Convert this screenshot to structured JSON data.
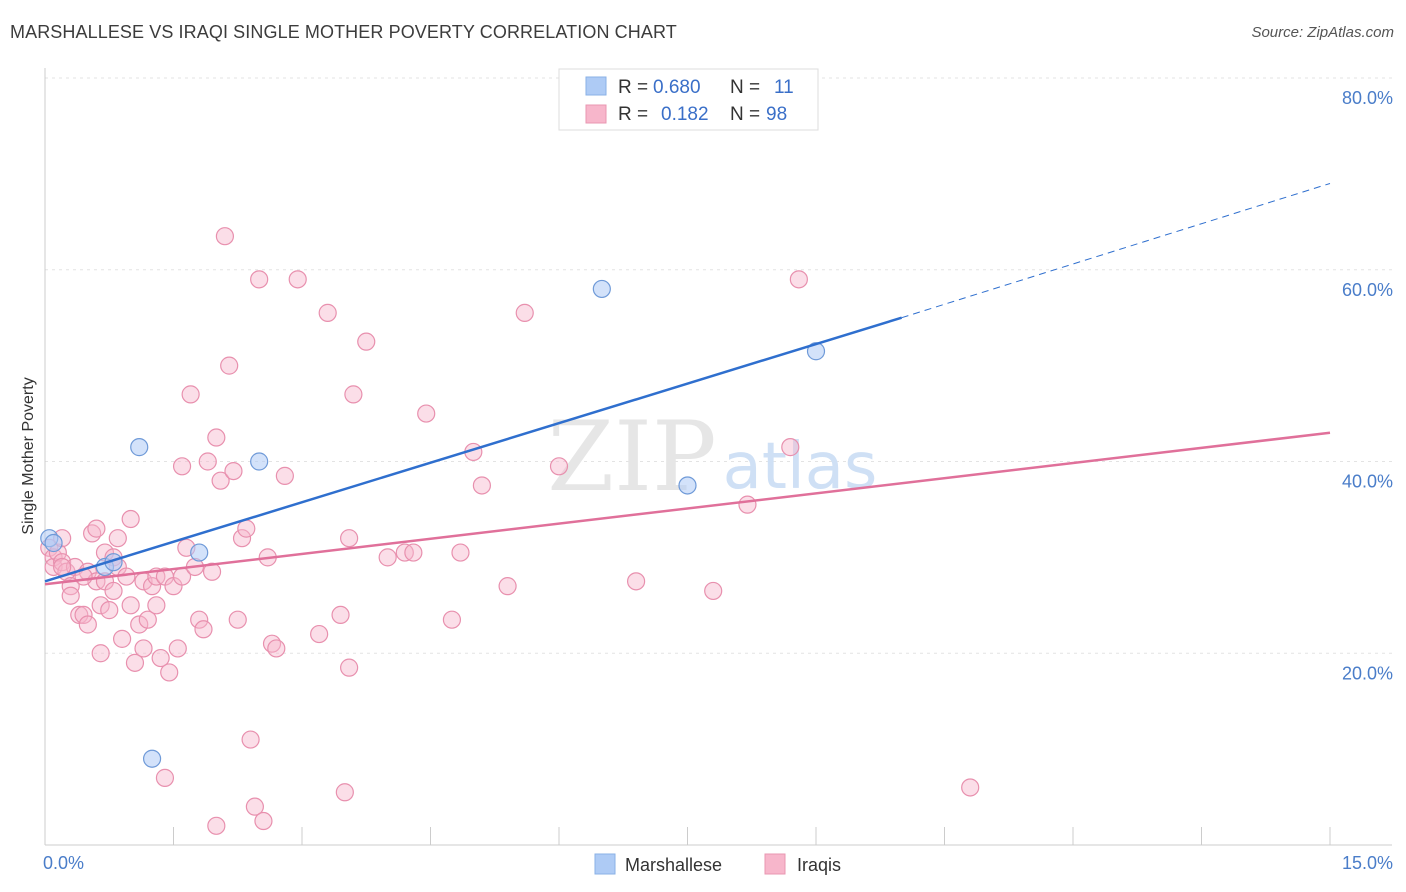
{
  "header": {
    "title": "MARSHALLESE VS IRAQI SINGLE MOTHER POVERTY CORRELATION CHART",
    "source": "Source: ZipAtlas.com"
  },
  "watermark": {
    "zip": "ZIP",
    "atlas": "atlas"
  },
  "legend_top": {
    "rows": [
      {
        "r_label": "R =",
        "r_value": "0.680",
        "n_label": "N =",
        "n_value": "11",
        "color": "#aecbf5"
      },
      {
        "r_label": "R =",
        "r_value": "0.182",
        "n_label": "N =",
        "n_value": "98",
        "color": "#f7b6cb"
      }
    ]
  },
  "legend_bottom": [
    {
      "label": "Marshallese",
      "color": "#aecbf5"
    },
    {
      "label": "Iraqis",
      "color": "#f7b6cb"
    }
  ],
  "colors": {
    "blue_line": "#2f6fce",
    "pink_line": "#e0709a",
    "blue_fill": "#aecbf5",
    "pink_fill": "#f7b6cb",
    "tick_label": "#4a7dc9"
  },
  "chart_data": {
    "type": "scatter",
    "title": "MARSHALLESE VS IRAQI SINGLE MOTHER POVERTY CORRELATION CHART",
    "xlabel": "",
    "ylabel": "Single Mother Poverty",
    "xlim": [
      0.0,
      15.0
    ],
    "ylim": [
      0.0,
      80.0
    ],
    "x_tick_labels": [
      "0.0%",
      "15.0%"
    ],
    "y_ticks": [
      20,
      40,
      60,
      80
    ],
    "y_tick_labels": [
      "20.0%",
      "40.0%",
      "60.0%",
      "80.0%"
    ],
    "grid": true,
    "series": [
      {
        "name": "Marshallese",
        "points": [
          [
            0.05,
            32.0
          ],
          [
            0.7,
            29.0
          ],
          [
            0.8,
            29.5
          ],
          [
            1.1,
            41.5
          ],
          [
            1.25,
            9.0
          ],
          [
            1.8,
            30.5
          ],
          [
            2.5,
            40.0
          ],
          [
            6.5,
            58.0
          ],
          [
            7.5,
            37.5
          ],
          [
            9.0,
            51.5
          ],
          [
            0.1,
            31.5
          ]
        ],
        "trend": {
          "x": [
            0.0,
            10.0
          ],
          "y": [
            27.5,
            55.0
          ],
          "dashed_to": {
            "x": 15.0,
            "y": 69.0
          }
        },
        "R": 0.68,
        "N": 11
      },
      {
        "name": "Iraqis",
        "points": [
          [
            0.05,
            31.0
          ],
          [
            0.1,
            30.0
          ],
          [
            0.1,
            29.0
          ],
          [
            0.15,
            30.5
          ],
          [
            0.2,
            29.5
          ],
          [
            0.2,
            32.0
          ],
          [
            0.25,
            28.5
          ],
          [
            0.3,
            27.0
          ],
          [
            0.3,
            26.0
          ],
          [
            0.35,
            29.0
          ],
          [
            0.4,
            24.0
          ],
          [
            0.45,
            24.0
          ],
          [
            0.5,
            23.0
          ],
          [
            0.5,
            28.5
          ],
          [
            0.55,
            32.5
          ],
          [
            0.6,
            33.0
          ],
          [
            0.6,
            27.5
          ],
          [
            0.65,
            25.0
          ],
          [
            0.65,
            20.0
          ],
          [
            0.7,
            27.5
          ],
          [
            0.7,
            30.5
          ],
          [
            0.75,
            24.5
          ],
          [
            0.8,
            30.0
          ],
          [
            0.8,
            26.5
          ],
          [
            0.85,
            32.0
          ],
          [
            0.85,
            29.0
          ],
          [
            0.9,
            21.5
          ],
          [
            0.95,
            28.0
          ],
          [
            1.0,
            25.0
          ],
          [
            1.0,
            34.0
          ],
          [
            1.05,
            19.0
          ],
          [
            1.1,
            23.0
          ],
          [
            1.15,
            27.5
          ],
          [
            1.15,
            20.5
          ],
          [
            1.2,
            23.5
          ],
          [
            1.25,
            27.0
          ],
          [
            1.3,
            25.0
          ],
          [
            1.3,
            28.0
          ],
          [
            1.35,
            19.5
          ],
          [
            1.4,
            28.0
          ],
          [
            1.45,
            18.0
          ],
          [
            1.5,
            27.0
          ],
          [
            1.55,
            20.5
          ],
          [
            1.6,
            28.0
          ],
          [
            1.6,
            39.5
          ],
          [
            1.65,
            31.0
          ],
          [
            1.7,
            47.0
          ],
          [
            1.75,
            29.0
          ],
          [
            1.8,
            23.5
          ],
          [
            1.85,
            22.5
          ],
          [
            1.9,
            40.0
          ],
          [
            1.95,
            28.5
          ],
          [
            2.0,
            42.5
          ],
          [
            2.05,
            38.0
          ],
          [
            2.1,
            63.5
          ],
          [
            2.15,
            50.0
          ],
          [
            2.2,
            39.0
          ],
          [
            2.25,
            23.5
          ],
          [
            2.3,
            32.0
          ],
          [
            2.35,
            33.0
          ],
          [
            2.4,
            11.0
          ],
          [
            2.45,
            4.0
          ],
          [
            2.5,
            59.0
          ],
          [
            2.55,
            2.5
          ],
          [
            2.6,
            30.0
          ],
          [
            2.65,
            21.0
          ],
          [
            2.7,
            20.5
          ],
          [
            2.8,
            38.5
          ],
          [
            2.95,
            59.0
          ],
          [
            3.2,
            22.0
          ],
          [
            3.3,
            55.5
          ],
          [
            3.45,
            24.0
          ],
          [
            3.5,
            5.5
          ],
          [
            3.55,
            32.0
          ],
          [
            3.55,
            18.5
          ],
          [
            3.6,
            47.0
          ],
          [
            3.75,
            52.5
          ],
          [
            4.0,
            30.0
          ],
          [
            4.2,
            30.5
          ],
          [
            4.3,
            30.5
          ],
          [
            4.45,
            45.0
          ],
          [
            4.75,
            23.5
          ],
          [
            4.85,
            30.5
          ],
          [
            5.0,
            41.0
          ],
          [
            5.1,
            37.5
          ],
          [
            5.4,
            27.0
          ],
          [
            5.6,
            55.5
          ],
          [
            6.0,
            39.5
          ],
          [
            6.9,
            27.5
          ],
          [
            7.8,
            26.5
          ],
          [
            8.2,
            35.5
          ],
          [
            8.7,
            41.5
          ],
          [
            8.8,
            59.0
          ],
          [
            10.8,
            6.0
          ],
          [
            2.0,
            2.0
          ],
          [
            1.4,
            7.0
          ],
          [
            0.2,
            29.0
          ],
          [
            0.45,
            28.0
          ]
        ],
        "trend": {
          "x": [
            0.0,
            15.0
          ],
          "y": [
            27.2,
            43.0
          ]
        },
        "R": 0.182,
        "N": 98
      }
    ]
  }
}
